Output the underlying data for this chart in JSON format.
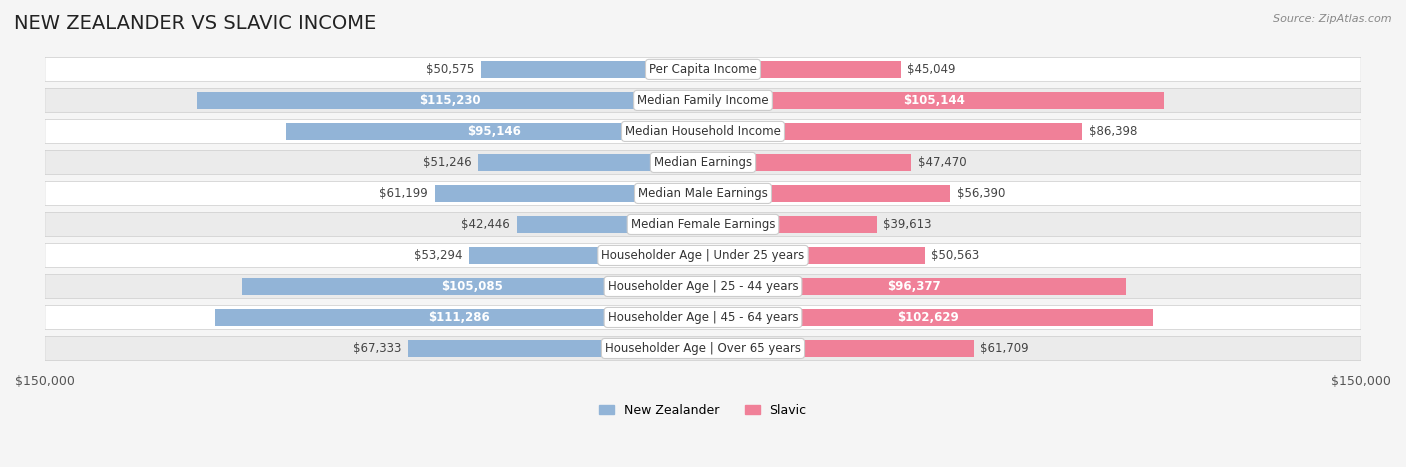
{
  "title": "NEW ZEALANDER VS SLAVIC INCOME",
  "source": "Source: ZipAtlas.com",
  "categories": [
    "Per Capita Income",
    "Median Family Income",
    "Median Household Income",
    "Median Earnings",
    "Median Male Earnings",
    "Median Female Earnings",
    "Householder Age | Under 25 years",
    "Householder Age | 25 - 44 years",
    "Householder Age | 45 - 64 years",
    "Householder Age | Over 65 years"
  ],
  "nz_values": [
    50575,
    115230,
    95146,
    51246,
    61199,
    42446,
    53294,
    105085,
    111286,
    67333
  ],
  "slavic_values": [
    45049,
    105144,
    86398,
    47470,
    56390,
    39613,
    50563,
    96377,
    102629,
    61709
  ],
  "nz_labels": [
    "$50,575",
    "$115,230",
    "$95,146",
    "$51,246",
    "$61,199",
    "$42,446",
    "$53,294",
    "$105,085",
    "$111,286",
    "$67,333"
  ],
  "slavic_labels": [
    "$45,049",
    "$105,144",
    "$86,398",
    "$47,470",
    "$56,390",
    "$39,613",
    "$50,563",
    "$96,377",
    "$102,629",
    "$61,709"
  ],
  "nz_color": "#92b4d7",
  "slavic_color": "#f08098",
  "nz_color_dark": "#6699cc",
  "slavic_color_dark": "#e8608a",
  "bar_height": 0.55,
  "max_value": 150000,
  "background_color": "#f5f5f5",
  "row_bg_color": "#ffffff",
  "row_alt_bg_color": "#f0f0f0",
  "title_fontsize": 14,
  "label_fontsize": 8.5,
  "category_fontsize": 8.5,
  "axis_label_fontsize": 9
}
